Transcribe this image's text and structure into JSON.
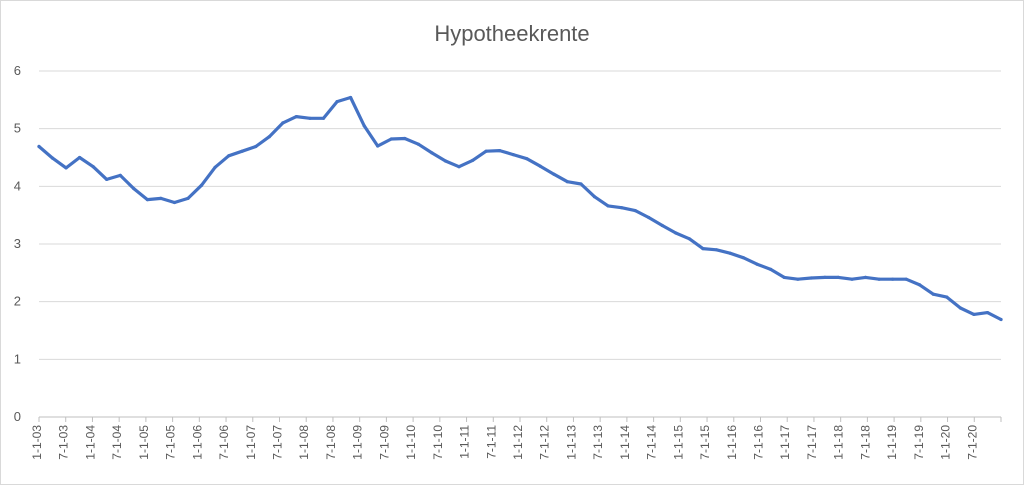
{
  "chart_data": {
    "type": "line",
    "title": "Hypotheekrente",
    "xlabel": "",
    "ylabel": "",
    "ylim": [
      0,
      6
    ],
    "yticks": [
      "0",
      "1",
      "2",
      "3",
      "4",
      "5",
      "6"
    ],
    "grid": true,
    "legend": "none",
    "x_tick_labels": [
      "1-1-03",
      "7-1-03",
      "1-1-04",
      "7-1-04",
      "1-1-05",
      "7-1-05",
      "1-1-06",
      "7-1-06",
      "1-1-07",
      "7-1-07",
      "1-1-08",
      "7-1-08",
      "1-1-09",
      "7-1-09",
      "1-1-10",
      "7-1-10",
      "1-1-11",
      "7-1-11",
      "1-1-12",
      "7-1-12",
      "1-1-13",
      "7-1-13",
      "1-1-14",
      "7-1-14",
      "1-1-15",
      "7-1-15",
      "1-1-16",
      "7-1-16",
      "1-1-17",
      "7-1-17",
      "1-1-18",
      "7-1-18",
      "1-1-19",
      "7-1-19",
      "1-1-20",
      "7-1-20"
    ],
    "series": [
      {
        "color": "#4472c4",
        "values": [
          4.69,
          4.49,
          4.32,
          4.5,
          4.34,
          4.12,
          4.19,
          3.96,
          3.77,
          3.79,
          3.72,
          3.79,
          4.02,
          4.33,
          4.53,
          4.61,
          4.69,
          4.86,
          5.1,
          5.21,
          5.18,
          5.18,
          5.47,
          5.54,
          5.05,
          4.7,
          4.82,
          4.83,
          4.73,
          4.58,
          4.44,
          4.34,
          4.45,
          4.61,
          4.62,
          4.55,
          4.48,
          4.35,
          4.21,
          4.08,
          4.04,
          3.82,
          3.66,
          3.63,
          3.58,
          3.46,
          3.32,
          3.19,
          3.09,
          2.92,
          2.9,
          2.84,
          2.76,
          2.65,
          2.56,
          2.42,
          2.39,
          2.41,
          2.42,
          2.42,
          2.39,
          2.42,
          2.39,
          2.39,
          2.39,
          2.29,
          2.13,
          2.08,
          1.89,
          1.78,
          1.81,
          1.69
        ]
      }
    ]
  }
}
